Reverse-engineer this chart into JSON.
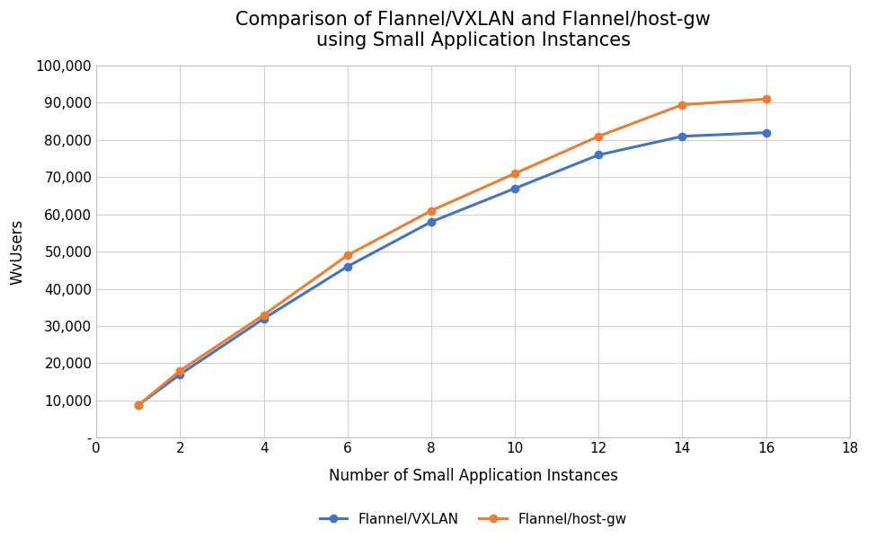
{
  "title_line1": "Comparison of Flannel/VXLAN and Flannel/host-gw",
  "title_line2": "using Small Application Instances",
  "xlabel": "Number of Small Application Instances",
  "ylabel": "WvUsers",
  "x": [
    1,
    2,
    4,
    6,
    8,
    10,
    12,
    14,
    16
  ],
  "vxlan_y": [
    8700,
    17000,
    32000,
    46000,
    58000,
    67000,
    76000,
    81000,
    82000
  ],
  "hostgw_y": [
    8700,
    18000,
    33000,
    49000,
    61000,
    71000,
    81000,
    89500,
    91000
  ],
  "vxlan_color": "#4472C4",
  "hostgw_color": "#ED7D31",
  "vxlan_label": "Flannel/VXLAN",
  "hostgw_label": "Flannel/host-gw",
  "xlim": [
    0,
    18
  ],
  "ylim": [
    0,
    100000
  ],
  "yticks": [
    0,
    10000,
    20000,
    30000,
    40000,
    50000,
    60000,
    70000,
    80000,
    90000,
    100000
  ],
  "xticks": [
    0,
    2,
    4,
    6,
    8,
    10,
    12,
    14,
    16,
    18
  ],
  "background_color": "#ffffff",
  "plot_bg_color": "#ffffff",
  "grid_color": "#d0d0d0",
  "title_fontsize": 15,
  "axis_label_fontsize": 12,
  "tick_fontsize": 11,
  "legend_fontsize": 11,
  "linewidth": 2.2,
  "markersize": 6,
  "spine_color": "#c0c0c0"
}
